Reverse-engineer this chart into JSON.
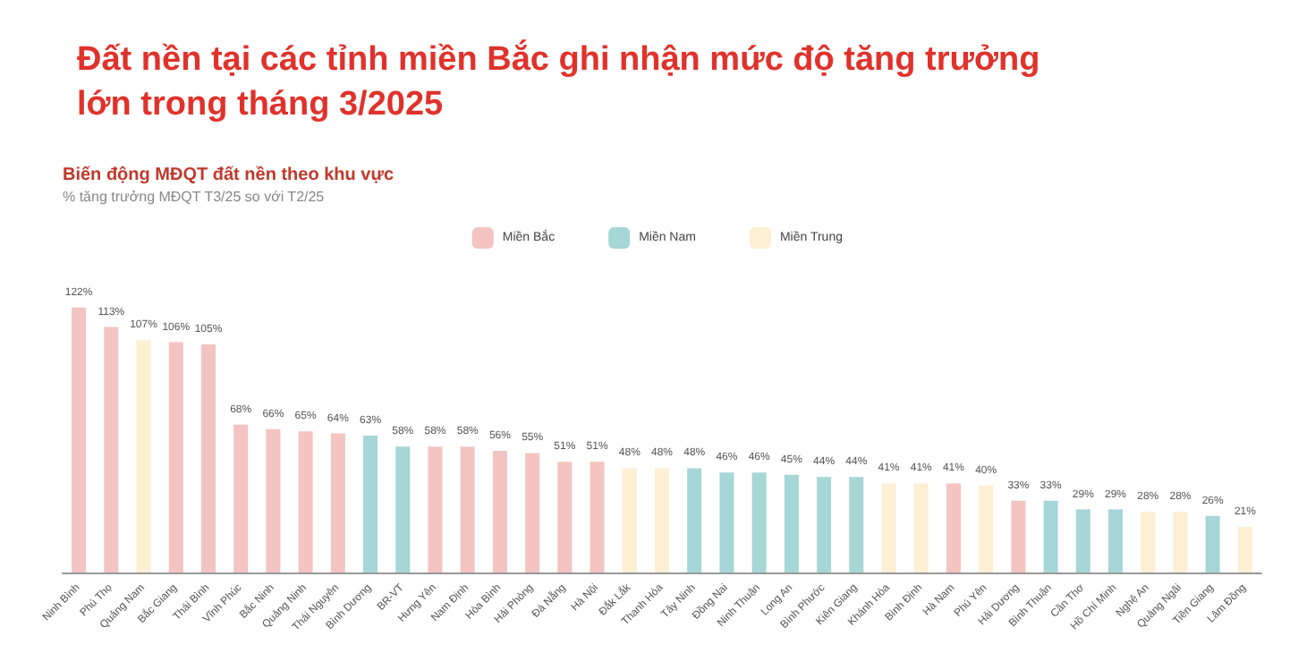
{
  "chart_data": {
    "type": "bar",
    "title": "Đất nền tại các tỉnh miền Bắc ghi nhận mức độ tăng trưởng lớn trong tháng 3/2025",
    "subtitle": "Biến động MĐQT đất nền theo khu vực",
    "annotations": [
      "% tăng trưởng MĐQT T3/25 so với T2/25"
    ],
    "categories": [
      "Ninh Bình",
      "Phú Thọ",
      "Quảng Nam",
      "Bắc Giang",
      "Thái Bình",
      "Vĩnh Phúc",
      "Bắc Ninh",
      "Quảng Ninh",
      "Thái Nguyên",
      "Bình Dương",
      "BR-VT",
      "Hưng Yên",
      "Nam Định",
      "Hòa Bình",
      "Hải Phòng",
      "Đà Nẵng",
      "Hà Nội",
      "Đắk Lắk",
      "Thanh Hóa",
      "Tây Ninh",
      "Đồng Nai",
      "Ninh Thuận",
      "Long An",
      "Bình Phước",
      "Kiên Giang",
      "Khánh Hòa",
      "Bình Định",
      "Hà Nam",
      "Phú Yên",
      "Hải Dương",
      "Bình Thuận",
      "Cần Thơ",
      "Hồ Chí Minh",
      "Nghệ An",
      "Quảng Ngãi",
      "Tiền Giang",
      "Lâm Đồng"
    ],
    "stacked": true,
    "series": [
      {
        "name": "Miền Bắc",
        "color": "#f4c4c2",
        "values": [
          122,
          113,
          null,
          106,
          105,
          68,
          66,
          65,
          64,
          null,
          null,
          58,
          58,
          56,
          55,
          51,
          51,
          null,
          null,
          null,
          null,
          null,
          null,
          null,
          null,
          null,
          null,
          41,
          null,
          33,
          null,
          null,
          null,
          null,
          null,
          null,
          null
        ],
        "value_labels": [
          "122%",
          "113%",
          null,
          "106%",
          "105%",
          "68%",
          "66%",
          "65%",
          "64%",
          null,
          null,
          "58%",
          "58%",
          "56%",
          "55%",
          "51%",
          "51%",
          null,
          null,
          null,
          null,
          null,
          null,
          null,
          null,
          null,
          null,
          "41%",
          null,
          "33%",
          null,
          null,
          null,
          null,
          null,
          null,
          null
        ]
      },
      {
        "name": "Miền Nam",
        "color": "#a6d6d6",
        "values": [
          null,
          null,
          null,
          null,
          null,
          null,
          null,
          null,
          null,
          63,
          58,
          null,
          null,
          null,
          null,
          null,
          null,
          null,
          null,
          48,
          46,
          46,
          45,
          44,
          44,
          null,
          null,
          null,
          null,
          null,
          33,
          29,
          29,
          null,
          null,
          26,
          null
        ],
        "value_labels": [
          null,
          null,
          null,
          null,
          null,
          null,
          null,
          null,
          null,
          "63%",
          "58%",
          null,
          null,
          null,
          null,
          null,
          null,
          null,
          null,
          "48%",
          "46%",
          "46%",
          "45%",
          "44%",
          "44%",
          null,
          null,
          null,
          null,
          null,
          "33%",
          "29%",
          "29%",
          null,
          null,
          "26%",
          null
        ]
      },
      {
        "name": "Miền Trung",
        "color": "#fcefd2",
        "values": [
          null,
          null,
          107,
          null,
          null,
          null,
          null,
          null,
          null,
          null,
          null,
          null,
          null,
          null,
          null,
          null,
          null,
          48,
          48,
          null,
          null,
          null,
          null,
          null,
          null,
          41,
          41,
          null,
          40,
          null,
          null,
          null,
          null,
          28,
          28,
          null,
          21
        ],
        "value_labels": [
          null,
          null,
          "107%",
          null,
          null,
          null,
          null,
          null,
          null,
          null,
          null,
          null,
          null,
          null,
          null,
          null,
          null,
          "48%",
          "48%",
          null,
          null,
          null,
          null,
          null,
          null,
          "41%",
          "41%",
          null,
          "40%",
          null,
          null,
          null,
          null,
          "28%",
          "28%",
          null,
          "21%"
        ]
      }
    ],
    "legend": "top"
  }
}
